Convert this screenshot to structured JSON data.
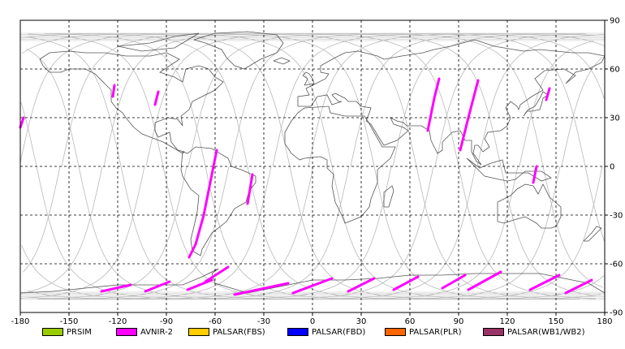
{
  "map": {
    "x_ticks": [
      {
        "lon": -180,
        "label": "-180"
      },
      {
        "lon": -150,
        "label": "-150"
      },
      {
        "lon": -120,
        "label": "-120"
      },
      {
        "lon": -90,
        "label": "-90"
      },
      {
        "lon": -60,
        "label": "-60"
      },
      {
        "lon": -30,
        "label": "-30"
      },
      {
        "lon": 0,
        "label": "0"
      },
      {
        "lon": 30,
        "label": "30"
      },
      {
        "lon": 60,
        "label": "60"
      },
      {
        "lon": 90,
        "label": "90"
      },
      {
        "lon": 120,
        "label": "120"
      },
      {
        "lon": 150,
        "label": "150"
      },
      {
        "lon": 180,
        "label": "180"
      }
    ],
    "y_ticks": [
      {
        "lat": 90,
        "label": "90"
      },
      {
        "lat": 60,
        "label": "60"
      },
      {
        "lat": 30,
        "label": "30"
      },
      {
        "lat": 0,
        "label": "0"
      },
      {
        "lat": -30,
        "label": "-30"
      },
      {
        "lat": -60,
        "label": "-60"
      },
      {
        "lat": -90,
        "label": "-90"
      }
    ],
    "lon_range": [
      -180,
      180
    ],
    "lat_range": [
      -90,
      90
    ],
    "grid": true,
    "ground_track_start_lons": [
      -170,
      -144,
      -118,
      -92,
      -66,
      -40,
      -14,
      12,
      38,
      64,
      90,
      116,
      142,
      168
    ],
    "observation_segments": [
      {
        "sensor": "AVNIR-2",
        "points": [
          [
            -180,
            24
          ],
          [
            -178,
            30
          ]
        ]
      },
      {
        "sensor": "AVNIR-2",
        "points": [
          [
            -123,
            43
          ],
          [
            -122,
            50
          ]
        ]
      },
      {
        "sensor": "AVNIR-2",
        "points": [
          [
            -97,
            38
          ],
          [
            -95,
            46
          ]
        ]
      },
      {
        "sensor": "AVNIR-2",
        "points": [
          [
            -59,
            10
          ],
          [
            -63,
            -10
          ],
          [
            -67,
            -30
          ],
          [
            -72,
            -48
          ],
          [
            -76,
            -56
          ]
        ]
      },
      {
        "sensor": "AVNIR-2",
        "points": [
          [
            -37,
            -5
          ],
          [
            -40,
            -23
          ]
        ]
      },
      {
        "sensor": "AVNIR-2",
        "points": [
          [
            71,
            22
          ],
          [
            75,
            42
          ],
          [
            78,
            54
          ]
        ]
      },
      {
        "sensor": "AVNIR-2",
        "points": [
          [
            91,
            10
          ],
          [
            96,
            30
          ],
          [
            102,
            53
          ]
        ]
      },
      {
        "sensor": "AVNIR-2",
        "points": [
          [
            136,
            -10
          ],
          [
            138,
            0
          ]
        ]
      },
      {
        "sensor": "AVNIR-2",
        "points": [
          [
            144,
            41
          ],
          [
            146,
            48
          ]
        ]
      },
      {
        "sensor": "AVNIR-2",
        "points": [
          [
            -130,
            -77
          ],
          [
            -112,
            -73
          ]
        ]
      },
      {
        "sensor": "AVNIR-2",
        "points": [
          [
            -103,
            -77
          ],
          [
            -88,
            -71
          ]
        ]
      },
      {
        "sensor": "AVNIR-2",
        "points": [
          [
            -77,
            -76
          ],
          [
            -62,
            -70
          ]
        ]
      },
      {
        "sensor": "AVNIR-2",
        "points": [
          [
            -66,
            -71
          ],
          [
            -52,
            -62
          ]
        ]
      },
      {
        "sensor": "AVNIR-2",
        "points": [
          [
            -48,
            -79
          ],
          [
            -15,
            -72
          ]
        ]
      },
      {
        "sensor": "AVNIR-2",
        "points": [
          [
            -12,
            -78
          ],
          [
            12,
            -69
          ]
        ]
      },
      {
        "sensor": "AVNIR-2",
        "points": [
          [
            22,
            -77
          ],
          [
            38,
            -69
          ]
        ]
      },
      {
        "sensor": "AVNIR-2",
        "points": [
          [
            50,
            -76
          ],
          [
            65,
            -68
          ]
        ]
      },
      {
        "sensor": "AVNIR-2",
        "points": [
          [
            80,
            -75
          ],
          [
            94,
            -67
          ]
        ]
      },
      {
        "sensor": "AVNIR-2",
        "points": [
          [
            96,
            -76
          ],
          [
            116,
            -65
          ]
        ]
      },
      {
        "sensor": "AVNIR-2",
        "points": [
          [
            134,
            -76
          ],
          [
            152,
            -67
          ]
        ]
      },
      {
        "sensor": "AVNIR-2",
        "points": [
          [
            156,
            -78
          ],
          [
            172,
            -70
          ]
        ]
      }
    ]
  },
  "legend": [
    {
      "label": "PRSIM",
      "color": "#99cc00"
    },
    {
      "label": "AVNIR-2",
      "color": "#ff00ff"
    },
    {
      "label": "PALSAR(FBS)",
      "color": "#ffcc00"
    },
    {
      "label": "PALSAR(FBD)",
      "color": "#0000ff"
    },
    {
      "label": "PALSAR(PLR)",
      "color": "#ff6600"
    },
    {
      "label": "PALSAR(WB1/WB2)",
      "color": "#993366"
    }
  ]
}
